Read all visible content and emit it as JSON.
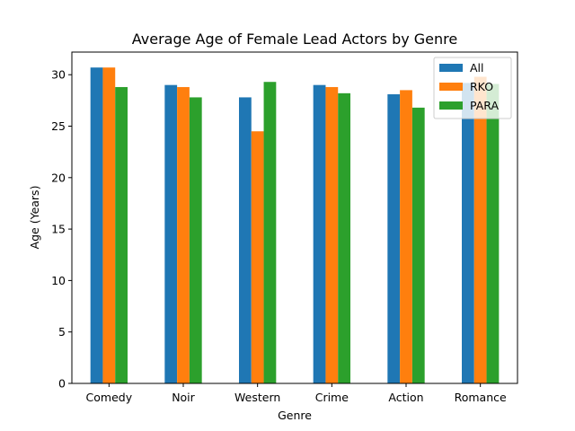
{
  "chart_data": {
    "type": "bar",
    "title": "Average Age of Female Lead Actors by Genre",
    "xlabel": "Genre",
    "ylabel": "Age (Years)",
    "categories": [
      "Comedy",
      "Noir",
      "Western",
      "Crime",
      "Action",
      "Romance"
    ],
    "series": [
      {
        "name": "All",
        "color": "#1f77b4",
        "values": [
          30.7,
          29.0,
          27.8,
          29.0,
          28.1,
          29.2
        ]
      },
      {
        "name": "RKO",
        "color": "#ff7f0e",
        "values": [
          30.7,
          28.8,
          24.5,
          28.8,
          28.5,
          29.8
        ]
      },
      {
        "name": "PARA",
        "color": "#2ca02c",
        "values": [
          28.8,
          27.8,
          29.3,
          28.2,
          26.8,
          29.1
        ]
      }
    ],
    "ylim": [
      0,
      32.2
    ],
    "yticks": [
      0,
      5,
      10,
      15,
      20,
      25,
      30
    ],
    "legend_position": "top-right",
    "grid": false
  }
}
